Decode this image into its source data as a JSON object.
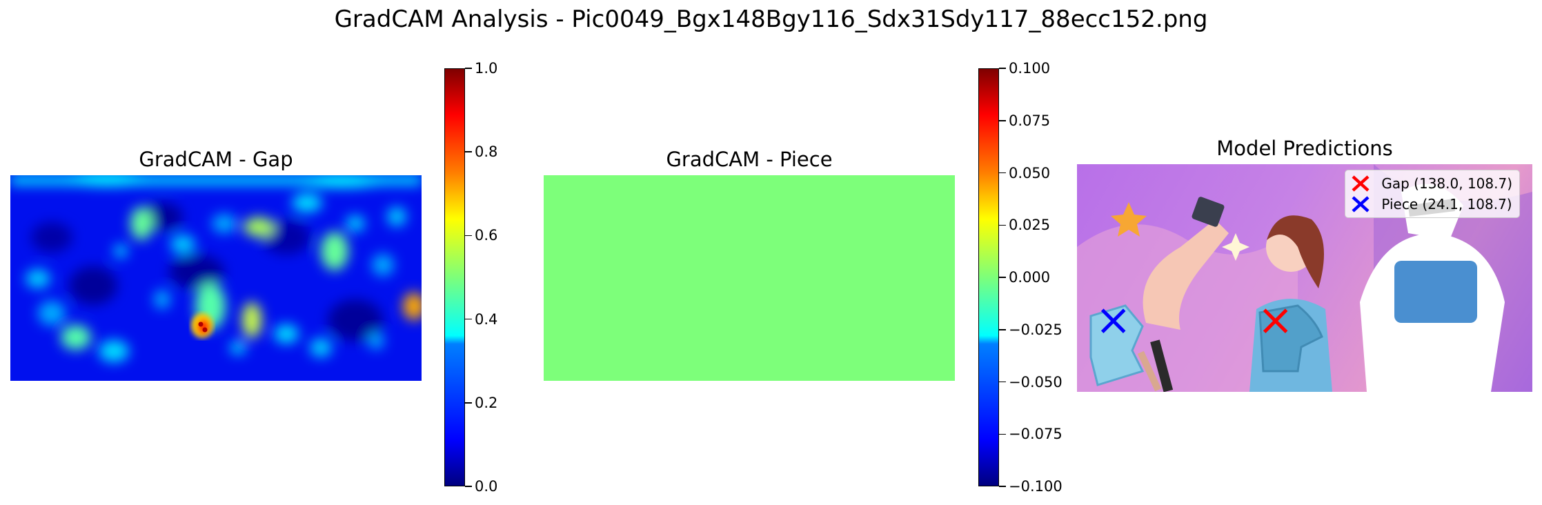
{
  "suptitle": "GradCAM Analysis - Pic0049_Bgx148Bgy116_Sdx31Sdy117_88ecc152.png",
  "panels": [
    {
      "title": "GradCAM - Gap"
    },
    {
      "title": "GradCAM - Piece"
    },
    {
      "title": "Model Predictions"
    }
  ],
  "colors": {
    "gap_marker": "#ff0000",
    "piece_marker": "#0000ff",
    "piece_heatmap_fill": "#7dff7a"
  },
  "chart_data": [
    {
      "type": "heatmap",
      "title": "GradCAM - Gap",
      "colormap": "jet",
      "colorbar": {
        "range": [
          0.0,
          1.0
        ],
        "ticks": [
          "0.0",
          "0.2",
          "0.4",
          "0.6",
          "0.8",
          "1.0"
        ]
      },
      "peak": {
        "location": "center-left, near gap position",
        "value": 1.0
      }
    },
    {
      "type": "heatmap",
      "title": "GradCAM - Piece",
      "colormap": "jet",
      "uniform_value": 0.0,
      "colorbar": {
        "range": [
          -0.1,
          0.1
        ],
        "ticks": [
          "0.100",
          "0.075",
          "0.050",
          "0.025",
          "0.000",
          "−0.025",
          "−0.050",
          "−0.075",
          "−0.100"
        ]
      }
    },
    {
      "type": "scatter",
      "title": "Model Predictions",
      "legend_position": "top-right",
      "series": [
        {
          "name": "Gap (138.0, 108.7)",
          "marker": "x",
          "color": "#ff0000",
          "x": 138.0,
          "y": 108.7
        },
        {
          "name": "Piece (24.1, 108.7)",
          "marker": "x",
          "color": "#0000ff",
          "x": 24.1,
          "y": 108.7
        }
      ]
    }
  ]
}
